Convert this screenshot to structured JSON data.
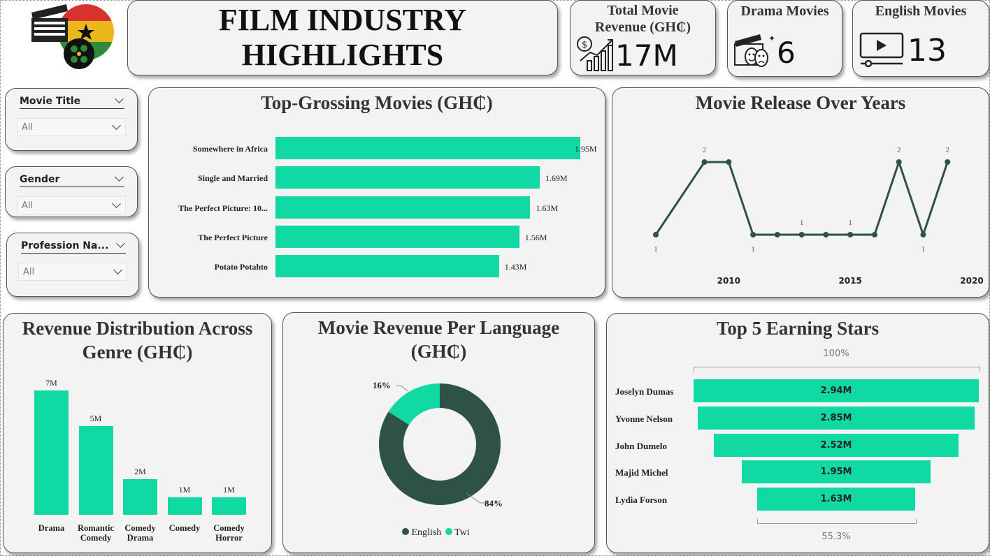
{
  "colors": {
    "accent": "#10d9a4",
    "dark": "#2e5248",
    "card": "#f3f3f3"
  },
  "header": {
    "title_line1": "FILM INDUSTRY",
    "title_line2": "HIGHLIGHTS",
    "logo_icon": "ghana-flag-film-clapper-icon"
  },
  "kpis": [
    {
      "label": "Total Movie Revenue (GH₵)",
      "value": "17M",
      "icon": "revenue-chart-icon"
    },
    {
      "label": "Drama Movies",
      "value": "6",
      "icon": "clapper-drama-masks-icon"
    },
    {
      "label": "English Movies",
      "value": "13",
      "icon": "video-player-icon"
    }
  ],
  "slicers": [
    {
      "label": "Movie Title",
      "value": "All"
    },
    {
      "label": "Gender",
      "value": "All"
    },
    {
      "label": "Profession Na...",
      "value": "All"
    }
  ],
  "top_grossing": {
    "title": "Top-Grossing Movies (GH₵)",
    "chart_data": {
      "type": "bar",
      "orientation": "horizontal",
      "categories": [
        "Somewhere in Africa",
        "Single and Married",
        "The Perfect Picture: 10...",
        "The Perfect Picture",
        "Potato Potahto"
      ],
      "values": [
        1.95,
        1.69,
        1.63,
        1.56,
        1.43
      ],
      "labels": [
        "1.95M",
        "1.69M",
        "1.63M",
        "1.56M",
        "1.43M"
      ],
      "unit": "M"
    }
  },
  "release": {
    "title": "Movie Release Over Years",
    "chart_data": {
      "type": "line",
      "x": [
        2007,
        2009,
        2010,
        2011,
        2012,
        2013,
        2014,
        2015,
        2016,
        2017,
        2018,
        2019
      ],
      "y": [
        1,
        2,
        2,
        1,
        1,
        1,
        1,
        1,
        1,
        2,
        1,
        2
      ],
      "point_labels": [
        "1",
        "2",
        "",
        "1",
        "",
        "1",
        "",
        "1",
        "",
        "2",
        "1",
        "2"
      ],
      "x_ticks": [
        "2010",
        "2015",
        "2020"
      ],
      "xlim": [
        2007,
        2020
      ]
    }
  },
  "genre": {
    "title": "Revenue Distribution Across Genre (GH₵)",
    "chart_data": {
      "type": "bar",
      "categories": [
        "Drama",
        "Romantic Comedy",
        "Comedy Drama",
        "Comedy",
        "Comedy Horror"
      ],
      "values": [
        7,
        5,
        2,
        1,
        1
      ],
      "labels": [
        "7M",
        "5M",
        "2M",
        "1M",
        "1M"
      ]
    }
  },
  "language": {
    "title": "Movie Revenue Per Language (GH₵)",
    "chart_data": {
      "type": "pie",
      "donut": true,
      "categories": [
        "English",
        "Twi"
      ],
      "values": [
        84,
        16
      ],
      "labels": [
        "84%",
        "16%"
      ],
      "colors": [
        "#2e5248",
        "#10d9a4"
      ]
    }
  },
  "stars": {
    "title": "Top 5 Earning Stars",
    "top_pct": "100%",
    "bottom_pct": "55.3%",
    "chart_data": {
      "type": "bar",
      "subtype": "funnel",
      "categories": [
        "Joselyn Dumas",
        "Yvonne Nelson",
        "John Dumelo",
        "Majid Michel",
        "Lydia Forson"
      ],
      "values": [
        2.94,
        2.85,
        2.52,
        1.95,
        1.63
      ],
      "labels": [
        "2.94M",
        "2.85M",
        "2.52M",
        "1.95M",
        "1.63M"
      ]
    }
  }
}
